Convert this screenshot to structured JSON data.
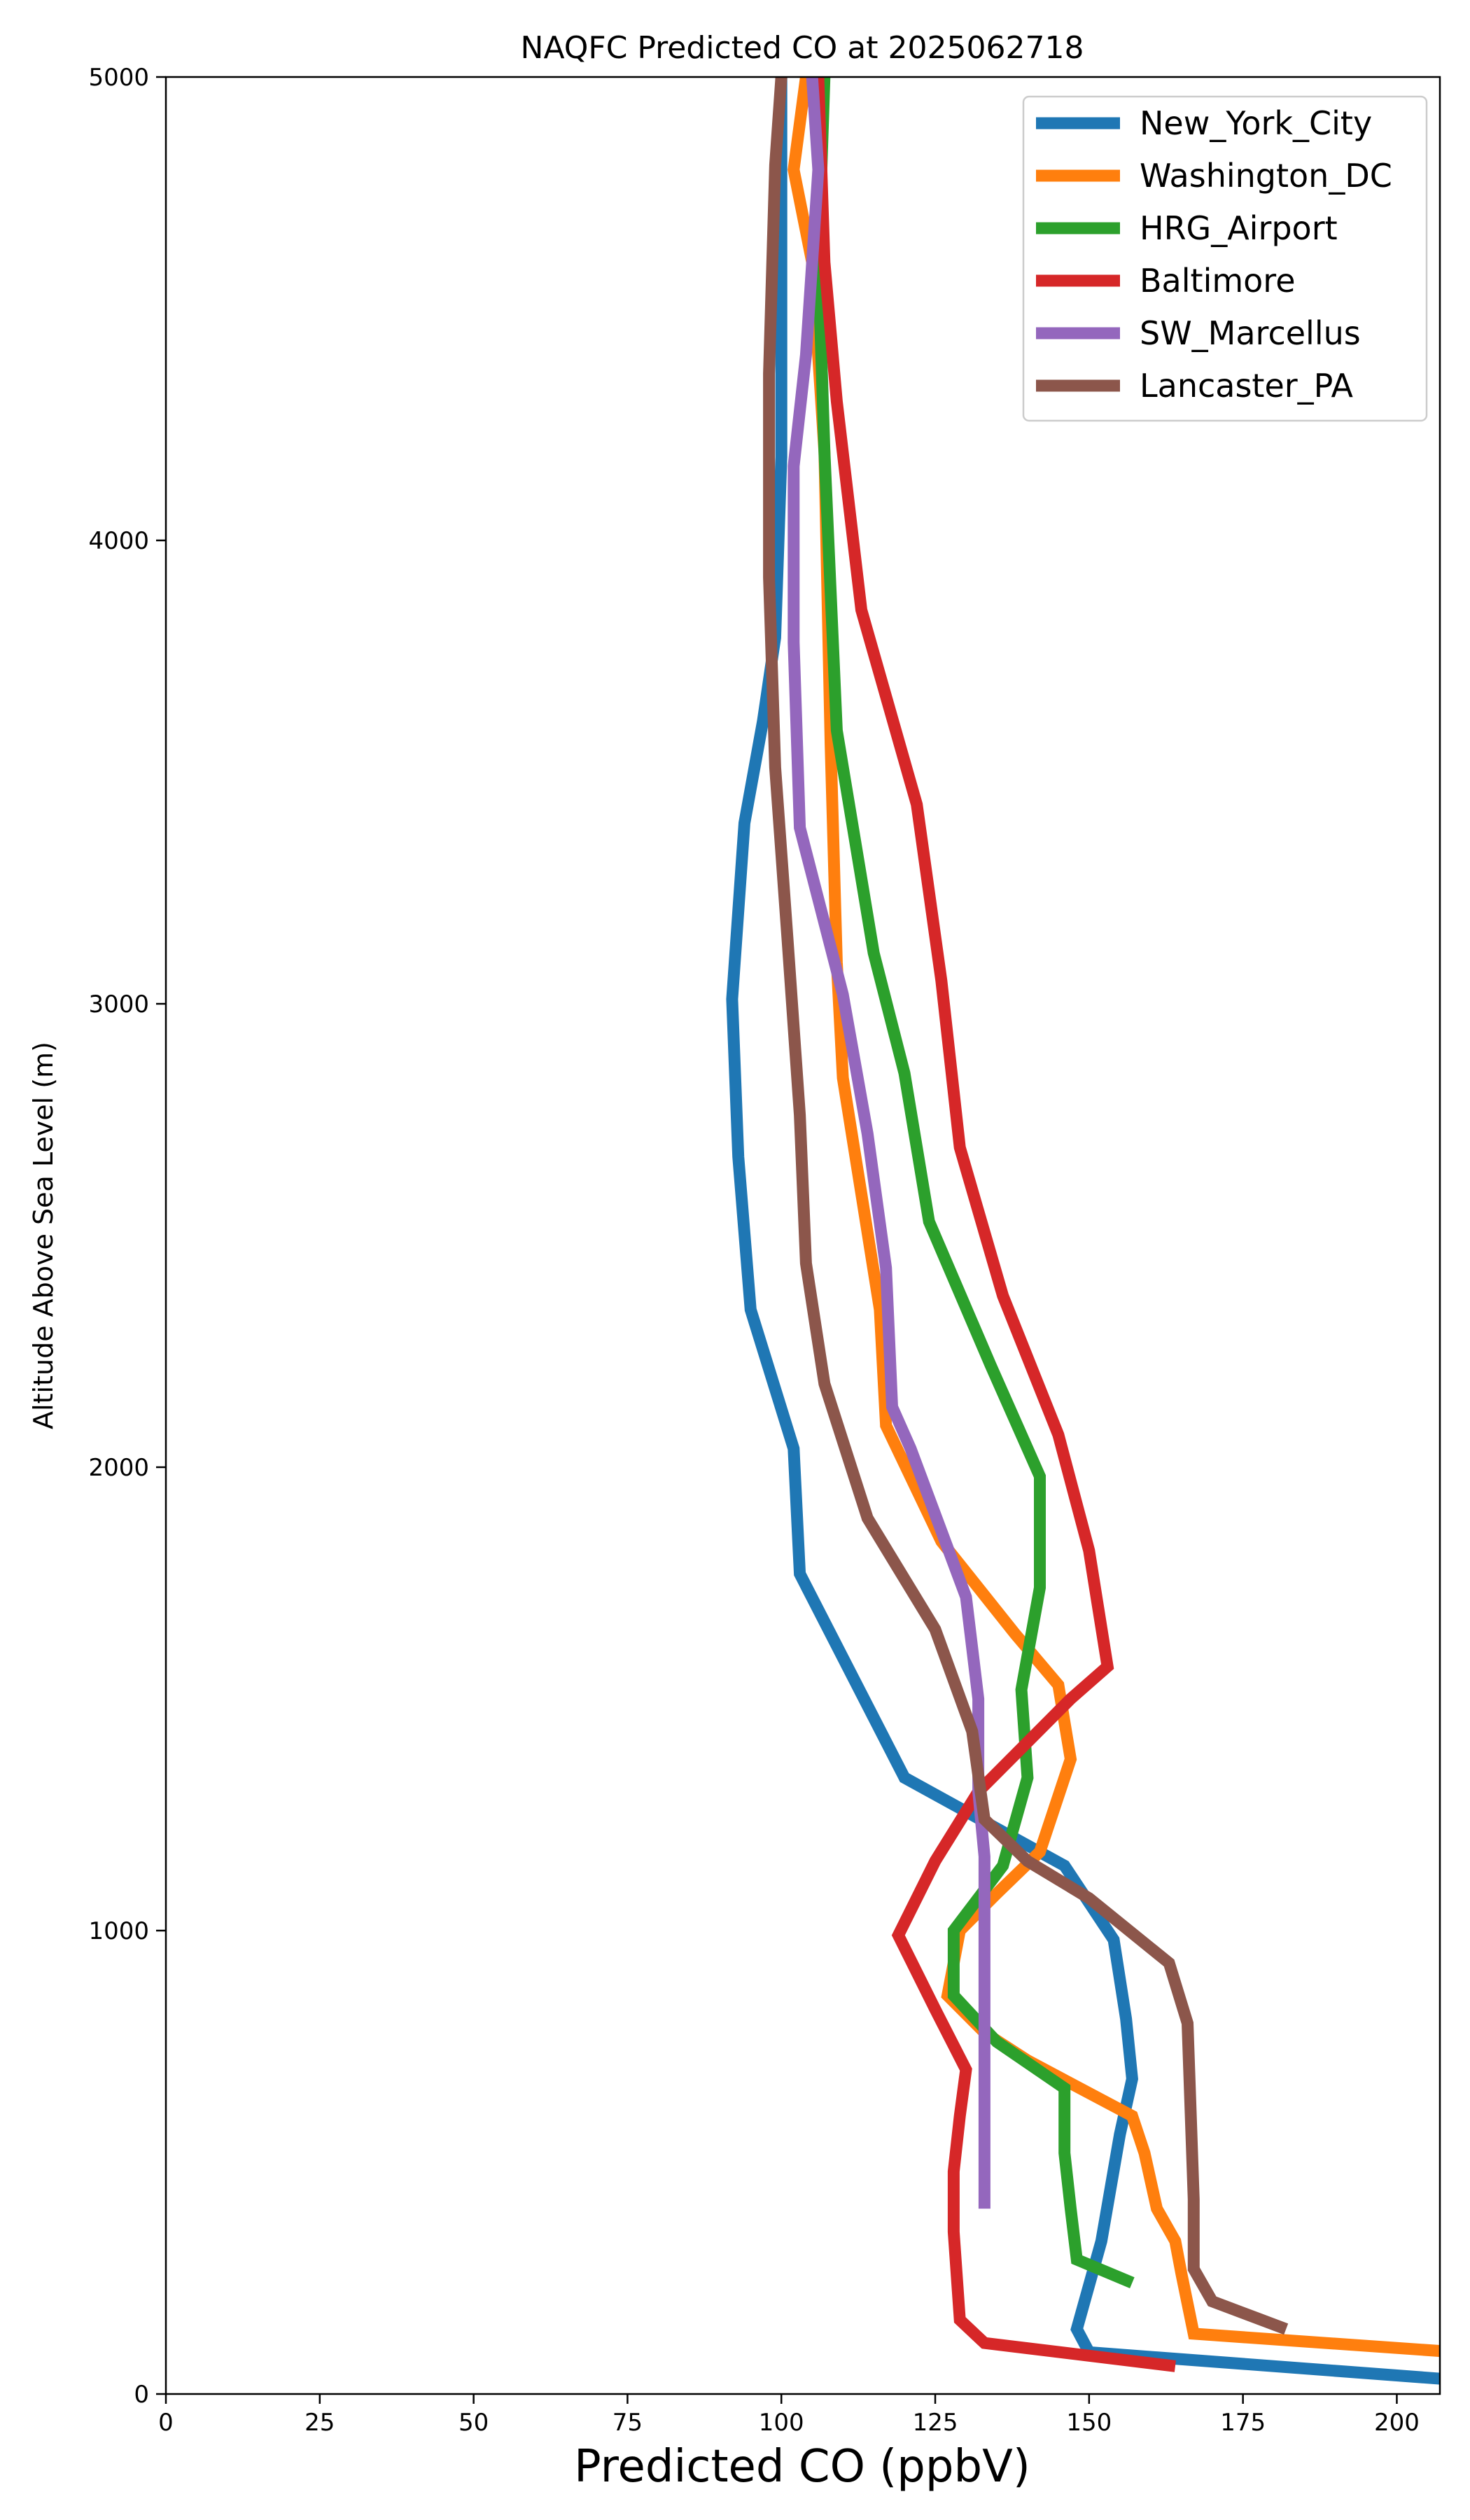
{
  "chart_data": {
    "type": "line",
    "title": "NAQFC Predicted CO at 2025062718",
    "xlabel": "Predicted CO (ppbV)",
    "ylabel": "Altitude Above Sea Level (m)",
    "xlim": [
      0,
      207
    ],
    "ylim": [
      0,
      5000
    ],
    "xticks": [
      0,
      25,
      50,
      75,
      100,
      125,
      150,
      175,
      200
    ],
    "yticks": [
      0,
      1000,
      2000,
      3000,
      4000,
      5000
    ],
    "grid": false,
    "legend_position": "top-right",
    "series": [
      {
        "name": "New_York_City",
        "color": "#1f77b4",
        "points": [
          [
            210,
            30
          ],
          [
            150,
            90
          ],
          [
            148,
            140
          ],
          [
            152,
            330
          ],
          [
            155,
            560
          ],
          [
            157,
            680
          ],
          [
            156,
            810
          ],
          [
            154,
            980
          ],
          [
            146,
            1140
          ],
          [
            120,
            1330
          ],
          [
            103,
            1770
          ],
          [
            102,
            2040
          ],
          [
            95,
            2340
          ],
          [
            93,
            2670
          ],
          [
            92,
            3010
          ],
          [
            94,
            3390
          ],
          [
            97,
            3610
          ],
          [
            99,
            3790
          ],
          [
            100,
            4180
          ],
          [
            100,
            4600
          ],
          [
            100,
            5000
          ]
        ]
      },
      {
        "name": "Washington_DC",
        "color": "#ff7f0e",
        "points": [
          [
            210,
            90
          ],
          [
            167,
            130
          ],
          [
            165,
            260
          ],
          [
            164,
            330
          ],
          [
            161,
            400
          ],
          [
            159,
            520
          ],
          [
            157,
            600
          ],
          [
            140,
            720
          ],
          [
            133,
            780
          ],
          [
            127,
            860
          ],
          [
            129,
            1000
          ],
          [
            135,
            1080
          ],
          [
            142,
            1170
          ],
          [
            147,
            1370
          ],
          [
            145,
            1530
          ],
          [
            138,
            1640
          ],
          [
            126,
            1840
          ],
          [
            117,
            2090
          ],
          [
            116,
            2340
          ],
          [
            113,
            2590
          ],
          [
            110,
            2840
          ],
          [
            109,
            3090
          ],
          [
            108,
            3560
          ],
          [
            107,
            4190
          ],
          [
            105,
            4600
          ],
          [
            102,
            4800
          ],
          [
            104,
            5000
          ]
        ]
      },
      {
        "name": "HRG_Airport",
        "color": "#2ca02c",
        "points": [
          [
            157,
            240
          ],
          [
            148,
            290
          ],
          [
            147,
            400
          ],
          [
            146,
            520
          ],
          [
            146,
            660
          ],
          [
            135,
            760
          ],
          [
            128,
            860
          ],
          [
            128,
            1000
          ],
          [
            136,
            1140
          ],
          [
            140,
            1330
          ],
          [
            139,
            1520
          ],
          [
            142,
            1740
          ],
          [
            142,
            1980
          ],
          [
            134,
            2220
          ],
          [
            124,
            2530
          ],
          [
            120,
            2850
          ],
          [
            115,
            3110
          ],
          [
            109,
            3590
          ],
          [
            107,
            4190
          ],
          [
            106,
            4600
          ],
          [
            107,
            5000
          ]
        ]
      },
      {
        "name": "Baltimore",
        "color": "#d62728",
        "points": [
          [
            164,
            60
          ],
          [
            133,
            110
          ],
          [
            129,
            160
          ],
          [
            128,
            350
          ],
          [
            128,
            480
          ],
          [
            129,
            600
          ],
          [
            130,
            700
          ],
          [
            125,
            830
          ],
          [
            119,
            990
          ],
          [
            125,
            1150
          ],
          [
            132,
            1300
          ],
          [
            147,
            1500
          ],
          [
            153,
            1570
          ],
          [
            150,
            1820
          ],
          [
            145,
            2070
          ],
          [
            136,
            2370
          ],
          [
            129,
            2690
          ],
          [
            126,
            3050
          ],
          [
            122,
            3430
          ],
          [
            113,
            3850
          ],
          [
            109,
            4300
          ],
          [
            107,
            4600
          ],
          [
            106,
            5000
          ]
        ]
      },
      {
        "name": "SW_Marcellus",
        "color": "#9467bd",
        "points": [
          [
            133,
            400
          ],
          [
            133,
            900
          ],
          [
            133,
            1160
          ],
          [
            132,
            1300
          ],
          [
            132,
            1500
          ],
          [
            130,
            1720
          ],
          [
            121,
            2040
          ],
          [
            118,
            2130
          ],
          [
            117,
            2430
          ],
          [
            114,
            2720
          ],
          [
            110,
            3020
          ],
          [
            103,
            3380
          ],
          [
            102,
            3780
          ],
          [
            102,
            4160
          ],
          [
            104,
            4400
          ],
          [
            106,
            4800
          ],
          [
            105,
            5000
          ]
        ]
      },
      {
        "name": "Lancaster_PA",
        "color": "#8c564b",
        "points": [
          [
            182,
            140
          ],
          [
            170,
            200
          ],
          [
            167,
            270
          ],
          [
            167,
            420
          ],
          [
            166,
            800
          ],
          [
            163,
            930
          ],
          [
            150,
            1070
          ],
          [
            140,
            1150
          ],
          [
            133,
            1240
          ],
          [
            131,
            1430
          ],
          [
            125,
            1650
          ],
          [
            114,
            1890
          ],
          [
            107,
            2180
          ],
          [
            104,
            2440
          ],
          [
            103,
            2760
          ],
          [
            101,
            3140
          ],
          [
            99,
            3510
          ],
          [
            98,
            3920
          ],
          [
            98,
            4360
          ],
          [
            99,
            4810
          ],
          [
            100,
            5000
          ]
        ]
      }
    ]
  }
}
